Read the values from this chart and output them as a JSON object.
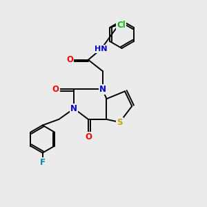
{
  "bg_color": "#ebebeb",
  "bond_color": "#000000",
  "atom_colors": {
    "N": "#0000cc",
    "O": "#ff0000",
    "S": "#bbaa00",
    "Cl": "#00bb00",
    "F": "#0088bb",
    "H": "#777799",
    "C": "#000000"
  },
  "font_size": 8.5,
  "lw": 1.4,
  "figsize": [
    3.0,
    3.0
  ],
  "dpi": 100
}
